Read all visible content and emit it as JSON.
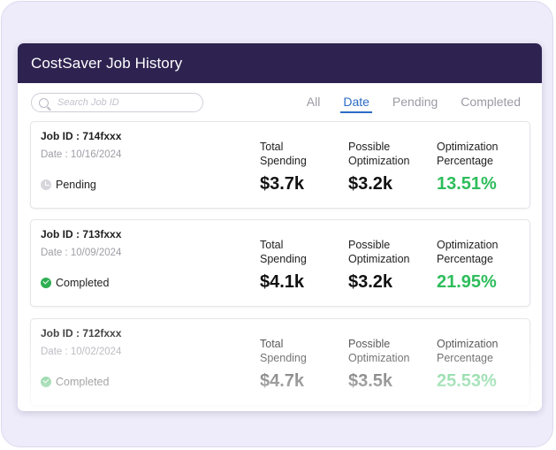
{
  "header": {
    "title": "CostSaver Job History"
  },
  "search": {
    "placeholder": "Search Job ID"
  },
  "tabs": [
    {
      "label": "All",
      "active": false
    },
    {
      "label": "Date",
      "active": true
    },
    {
      "label": "Pending",
      "active": false
    },
    {
      "label": "Completed",
      "active": false
    }
  ],
  "metric_labels": {
    "total": "Total\nSpending",
    "possible": "Possible\nOptimization",
    "percentage": "Optimization\nPercentage"
  },
  "jobs": [
    {
      "id": "Job ID : 714fxxx",
      "date": "Date : 10/16/2024",
      "status": "Pending",
      "total": "$3.7k",
      "possible": "$3.2k",
      "percentage": "13.51%"
    },
    {
      "id": "Job ID : 713fxxx",
      "date": "Date : 10/09/2024",
      "status": "Completed",
      "total": "$4.1k",
      "possible": "$3.2k",
      "percentage": "21.95%"
    },
    {
      "id": "Job ID : 712fxxx",
      "date": "Date : 10/02/2024",
      "status": "Completed",
      "total": "$4.7k",
      "possible": "$3.5k",
      "percentage": "25.53%"
    }
  ],
  "colors": {
    "header": "#2e2350",
    "accent": "#2a6bc4",
    "percentage": "#2ebd5b",
    "completed": "#2eaf52"
  }
}
